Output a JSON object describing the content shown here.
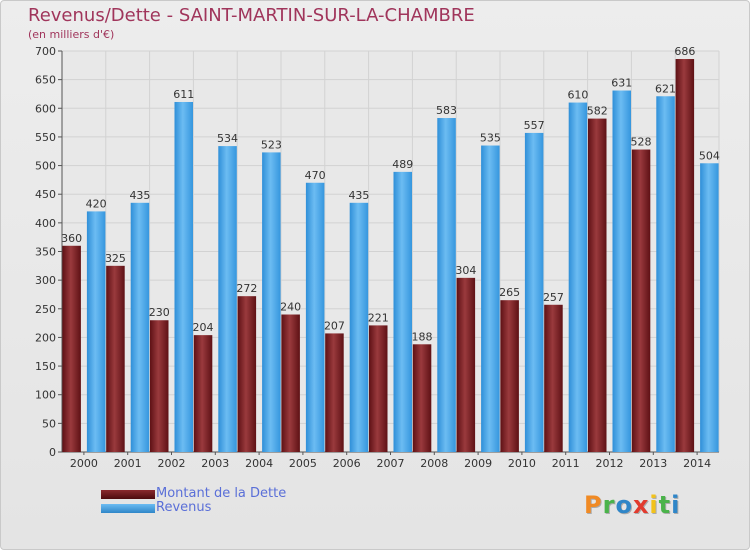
{
  "chart_data": {
    "type": "bar",
    "title": "Revenus/Dette - SAINT-MARTIN-SUR-LA-CHAMBRE",
    "subtitle": "(en milliers d'€)",
    "categories": [
      "2000",
      "2001",
      "2002",
      "2003",
      "2004",
      "2005",
      "2006",
      "2007",
      "2008",
      "2009",
      "2010",
      "2011",
      "2012",
      "2013",
      "2014"
    ],
    "series": [
      {
        "name": "Montant de la Dette",
        "color": "#7a1f24",
        "values": [
          360,
          325,
          230,
          204,
          272,
          240,
          207,
          221,
          188,
          304,
          265,
          257,
          582,
          528,
          686
        ]
      },
      {
        "name": "Revenus",
        "color": "#4da6ea",
        "values": [
          420,
          435,
          611,
          534,
          523,
          470,
          435,
          489,
          583,
          535,
          557,
          610,
          631,
          621,
          504
        ]
      }
    ],
    "yticks": [
      0,
      50,
      100,
      150,
      200,
      250,
      300,
      350,
      400,
      450,
      500,
      550,
      600,
      650,
      700
    ],
    "ylim": [
      0,
      700
    ],
    "xlabel": "",
    "ylabel": "",
    "legend_position": "bottom-left"
  },
  "branding": {
    "logo_letters": [
      "P",
      "r",
      "o",
      "x",
      "i",
      "t",
      "i"
    ],
    "logo_colors": [
      "#f08a24",
      "#4ab34a",
      "#2f86c8",
      "#e23b2e",
      "#f2c21b",
      "#4ab34a",
      "#2f86c8"
    ]
  }
}
